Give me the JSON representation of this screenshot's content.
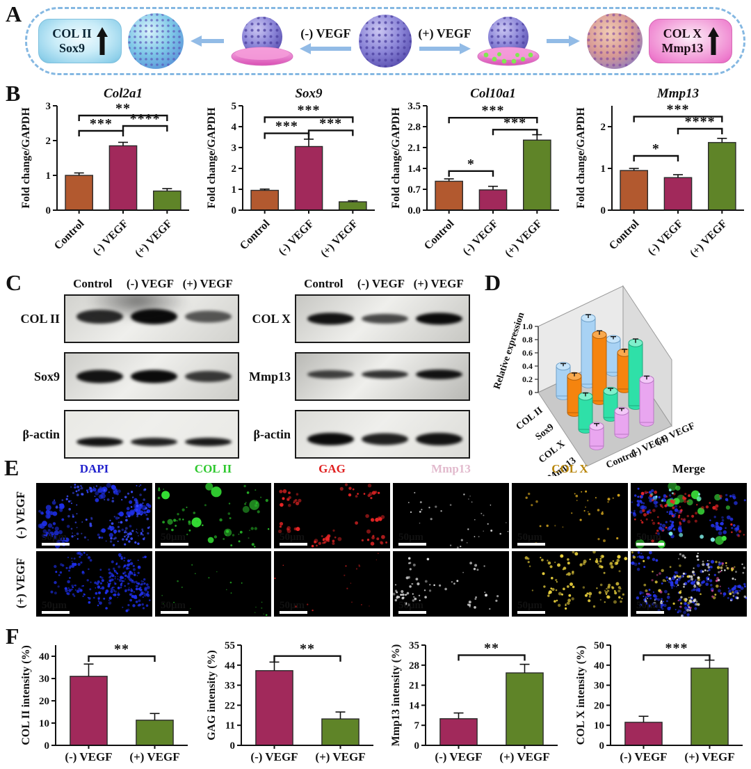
{
  "panel_labels": {
    "a": "A",
    "b": "B",
    "c": "C",
    "d": "D",
    "e": "E",
    "f": "F"
  },
  "panel_a": {
    "left_box": {
      "line1": "COL II",
      "line2": "Sox9"
    },
    "right_box": {
      "line1": "COL X",
      "line2": "Mmp13"
    },
    "minus_label": "(-) VEGF",
    "plus_label": "(+) VEGF"
  },
  "colors": {
    "control_bar": "#B2592F",
    "minus_bar": "#A1295B",
    "plus_bar": "#5F8428",
    "dashed_border": "#85B8E2"
  },
  "panel_c": {
    "groups": [
      {
        "headers": [
          "Control",
          "(-) VEGF",
          "(+) VEGF"
        ],
        "rows": [
          {
            "label": "COL II",
            "bands": [
              0.8,
              1,
              0.5
            ],
            "thickness": 22,
            "band_y": 46,
            "bg": "#d2d2ce",
            "smudge": true
          },
          {
            "label": "Sox9",
            "bands": [
              0.95,
              1,
              0.7
            ],
            "thickness": 19,
            "band_y": 50,
            "bg": "#cdcdc9",
            "smudge": false
          },
          {
            "label": "β-actin",
            "bands": [
              0.95,
              0.85,
              0.9
            ],
            "thickness": 13,
            "band_y": 66,
            "bg": "#e9e9e5",
            "smudge": false
          }
        ]
      },
      {
        "headers": [
          "Control",
          "(-) VEGF",
          "(+) VEGF"
        ],
        "rows": [
          {
            "label": "COL X",
            "bands": [
              0.95,
              0.6,
              1
            ],
            "thickness": 17,
            "band_y": 50,
            "bg": "#c7c7c3",
            "smudge": false
          },
          {
            "label": "Mmp13",
            "bands": [
              0.65,
              0.75,
              0.95
            ],
            "thickness": 14,
            "band_y": 46,
            "bg": "#b9b9b5",
            "smudge": false
          },
          {
            "label": "β-actin",
            "bands": [
              1,
              0.85,
              0.95
            ],
            "thickness": 18,
            "band_y": 60,
            "bg": "#dcdcd8",
            "smudge": false
          }
        ]
      }
    ]
  },
  "panel_e": {
    "headers": [
      {
        "label": "DAPI",
        "color": "#2020CC"
      },
      {
        "label": "COL II",
        "color": "#2EC82E"
      },
      {
        "label": "GAG",
        "color": "#E02020"
      },
      {
        "label": "Mmp13",
        "color": "#E2BACD"
      },
      {
        "label": "COL X",
        "color": "#B8860B"
      },
      {
        "label": "Merge",
        "color": "#111111"
      }
    ],
    "row_labels": [
      "(-) VEGF",
      "(+) VEGF"
    ],
    "scale_label": "50μm",
    "cells": [
      [
        [
          {
            "c": "#1E2FE8",
            "count": 120,
            "rmin": 1.5,
            "rmax": 4,
            "clusters": 12,
            "spread": 22
          },
          {
            "c": "#3A4CFF",
            "count": 150,
            "rmin": 0.8,
            "rmax": 2,
            "clusters": 14,
            "spread": 26
          }
        ],
        [
          {
            "c": "#35E035",
            "count": 9,
            "rmin": 4,
            "rmax": 8,
            "clusters": 9,
            "spread": 30
          },
          {
            "c": "#2BC72B",
            "count": 60,
            "rmin": 0.8,
            "rmax": 2.2,
            "clusters": 12,
            "spread": 30
          }
        ],
        [
          {
            "c": "#E82525",
            "count": 80,
            "rmin": 1.2,
            "rmax": 3,
            "clusters": 11,
            "spread": 24
          }
        ],
        [
          {
            "c": "#C8C8C8",
            "count": 28,
            "rmin": 0.7,
            "rmax": 1.6,
            "clusters": 9,
            "spread": 28
          }
        ],
        [
          {
            "c": "#D9A91F",
            "count": 34,
            "rmin": 0.9,
            "rmax": 2,
            "clusters": 9,
            "spread": 26
          }
        ],
        [
          {
            "c": "#2433E8",
            "count": 110,
            "rmin": 1.2,
            "rmax": 3,
            "clusters": 12,
            "spread": 24
          },
          {
            "c": "#3BE03B",
            "count": 10,
            "rmin": 3,
            "rmax": 7,
            "clusters": 8,
            "spread": 28
          },
          {
            "c": "#E82525",
            "count": 70,
            "rmin": 1,
            "rmax": 2.6,
            "clusters": 11,
            "spread": 24
          },
          {
            "c": "#7FF0E8",
            "count": 12,
            "rmin": 1.5,
            "rmax": 3.5,
            "clusters": 6,
            "spread": 20
          }
        ]
      ],
      [
        [
          {
            "c": "#1E2FE8",
            "count": 260,
            "rmin": 0.8,
            "rmax": 2.4,
            "clusters": 16,
            "spread": 28
          }
        ],
        [
          {
            "c": "#2BC72B",
            "count": 16,
            "rmin": 0.6,
            "rmax": 1.4,
            "clusters": 7,
            "spread": 30
          }
        ],
        [
          {
            "c": "#D82020",
            "count": 14,
            "rmin": 0.6,
            "rmax": 1.3,
            "clusters": 6,
            "spread": 30
          }
        ],
        [
          {
            "c": "#DCDCDC",
            "count": 70,
            "rmin": 0.9,
            "rmax": 2.2,
            "clusters": 12,
            "spread": 26
          }
        ],
        [
          {
            "c": "#E8CF3C",
            "count": 110,
            "rmin": 1,
            "rmax": 2.6,
            "clusters": 13,
            "spread": 26
          }
        ],
        [
          {
            "c": "#2433E8",
            "count": 170,
            "rmin": 1,
            "rmax": 2.6,
            "clusters": 14,
            "spread": 26
          },
          {
            "c": "#E0E0E0",
            "count": 80,
            "rmin": 0.9,
            "rmax": 2.2,
            "clusters": 12,
            "spread": 26
          },
          {
            "c": "#E8CF3C",
            "count": 45,
            "rmin": 1,
            "rmax": 2.4,
            "clusters": 10,
            "spread": 26
          },
          {
            "c": "#D84A9A",
            "count": 18,
            "rmin": 1,
            "rmax": 2,
            "clusters": 6,
            "spread": 24
          }
        ]
      ]
    ]
  },
  "chart_data": [
    {
      "id": "b1",
      "type": "bar",
      "title": "Col2a1",
      "ylabel": "Fold change/GAPDH",
      "categories": [
        "Control",
        "(-) VEGF",
        "(+) VEGF"
      ],
      "values": [
        1.0,
        1.85,
        0.55
      ],
      "errors": [
        0.07,
        0.1,
        0.07
      ],
      "ylim": [
        0,
        3
      ],
      "yticks": [
        "0",
        "1",
        "2",
        "3"
      ],
      "bar_colors": [
        "#B2592F",
        "#A1295B",
        "#5F8428"
      ],
      "rotate_x": true,
      "significance": [
        {
          "pair": [
            0,
            1
          ],
          "label": "***",
          "y": 2.28
        },
        {
          "pair": [
            1,
            2
          ],
          "label": "****",
          "y": 2.42
        },
        {
          "pair": [
            0,
            2
          ],
          "label": "**",
          "y": 2.72
        }
      ]
    },
    {
      "id": "b2",
      "type": "bar",
      "title": "Sox9",
      "ylabel": "Fold change/GAPDH",
      "categories": [
        "Control",
        "(-) VEGF",
        "(+) VEGF"
      ],
      "values": [
        0.95,
        3.05,
        0.4
      ],
      "errors": [
        0.06,
        0.35,
        0.05
      ],
      "ylim": [
        0,
        5
      ],
      "yticks": [
        "0",
        "1",
        "2",
        "3",
        "4",
        "5"
      ],
      "bar_colors": [
        "#B2592F",
        "#A1295B",
        "#5F8428"
      ],
      "rotate_x": true,
      "significance": [
        {
          "pair": [
            0,
            1
          ],
          "label": "***",
          "y": 3.68
        },
        {
          "pair": [
            1,
            2
          ],
          "label": "***",
          "y": 3.82
        },
        {
          "pair": [
            0,
            2
          ],
          "label": "***",
          "y": 4.45
        }
      ]
    },
    {
      "id": "b3",
      "type": "bar",
      "title": "Col10a1",
      "ylabel": "Fold change/GAPDH",
      "categories": [
        "Control",
        "(-) VEGF",
        "(+) VEGF"
      ],
      "values": [
        0.97,
        0.68,
        2.35
      ],
      "errors": [
        0.08,
        0.12,
        0.18
      ],
      "ylim": [
        0,
        3.5
      ],
      "yticks": [
        "0.0",
        "0.7",
        "1.4",
        "2.1",
        "2.8",
        "3.5"
      ],
      "bar_colors": [
        "#B2592F",
        "#A1295B",
        "#5F8428"
      ],
      "rotate_x": true,
      "significance": [
        {
          "pair": [
            0,
            1
          ],
          "label": "*",
          "y": 1.31
        },
        {
          "pair": [
            1,
            2
          ],
          "label": "***",
          "y": 2.7
        },
        {
          "pair": [
            0,
            2
          ],
          "label": "***",
          "y": 3.1
        }
      ]
    },
    {
      "id": "b4",
      "type": "bar",
      "title": "Mmp13",
      "ylabel": "Fold change/GAPDH",
      "categories": [
        "Control",
        "(-) VEGF",
        "(+) VEGF"
      ],
      "values": [
        0.95,
        0.78,
        1.62
      ],
      "errors": [
        0.05,
        0.07,
        0.1
      ],
      "ylim": [
        0,
        2.5
      ],
      "yticks": [
        "0",
        "1",
        "2"
      ],
      "bar_colors": [
        "#B2592F",
        "#A1295B",
        "#5F8428"
      ],
      "rotate_x": true,
      "significance": [
        {
          "pair": [
            0,
            1
          ],
          "label": "*",
          "y": 1.3
        },
        {
          "pair": [
            1,
            2
          ],
          "label": "****",
          "y": 1.95
        },
        {
          "pair": [
            0,
            2
          ],
          "label": "***",
          "y": 2.24
        }
      ]
    },
    {
      "id": "d",
      "type": "bar3d",
      "zlabel": "Relative expression",
      "zlim": [
        0,
        1
      ],
      "zticks": [
        "0",
        "0.2",
        "0.4",
        "0.6",
        "0.8",
        "1.0"
      ],
      "groups": [
        "Control",
        "(-) VEGF",
        "(+) VEGF"
      ],
      "proteins": [
        "COL II",
        "Sox9",
        "COL X",
        "Mmp13"
      ],
      "series": [
        {
          "name": "COL II",
          "fill": "#A8D2F4",
          "stroke": "#6FA0C8",
          "top": "#C6E4FA",
          "values": [
            0.45,
            1.0,
            0.5
          ],
          "errors": [
            0.04,
            0.05,
            0.04
          ]
        },
        {
          "name": "Sox9",
          "fill": "#F5840E",
          "stroke": "#B5600A",
          "top": "#F9A94E",
          "values": [
            0.55,
            1.0,
            0.55
          ],
          "errors": [
            0.05,
            0.06,
            0.05
          ]
        },
        {
          "name": "COL X",
          "fill": "#2FE0A8",
          "stroke": "#1FA87D",
          "top": "#7FF0CC",
          "values": [
            0.5,
            0.4,
            0.95
          ],
          "errors": [
            0.05,
            0.04,
            0.06
          ]
        },
        {
          "name": "Mmp13",
          "fill": "#E9A6F0",
          "stroke": "#B878C2",
          "top": "#F3C8F8",
          "values": [
            0.3,
            0.35,
            0.65
          ],
          "errors": [
            0.04,
            0.04,
            0.05
          ]
        }
      ]
    },
    {
      "id": "f1",
      "type": "bar",
      "ylabel": "COL II intensity (%)",
      "categories": [
        "(-) VEGF",
        "(+) VEGF"
      ],
      "values": [
        31,
        11.3
      ],
      "errors": [
        5.5,
        3
      ],
      "ylim": [
        0,
        45
      ],
      "yticks": [
        "0",
        "10",
        "20",
        "30",
        "40"
      ],
      "bar_colors": [
        "#A1295B",
        "#5F8428"
      ],
      "rotate_x": false,
      "significance": [
        {
          "pair": [
            0,
            1
          ],
          "label": "**",
          "y": 40
        }
      ]
    },
    {
      "id": "f2",
      "type": "bar",
      "ylabel": "GAG intensity (%)",
      "categories": [
        "(-) VEGF",
        "(+) VEGF"
      ],
      "values": [
        41,
        14.5
      ],
      "errors": [
        4.7,
        3.8
      ],
      "ylim": [
        0,
        55
      ],
      "yticks": [
        "0",
        "11",
        "22",
        "33",
        "44",
        "55"
      ],
      "bar_colors": [
        "#A1295B",
        "#5F8428"
      ],
      "rotate_x": false,
      "significance": [
        {
          "pair": [
            0,
            1
          ],
          "label": "**",
          "y": 49
        }
      ]
    },
    {
      "id": "f3",
      "type": "bar",
      "ylabel": "Mmp13 intensity (%)",
      "categories": [
        "(-) VEGF",
        "(+) VEGF"
      ],
      "values": [
        9.3,
        25.3
      ],
      "errors": [
        2,
        3
      ],
      "ylim": [
        0,
        35
      ],
      "yticks": [
        "0",
        "7",
        "14",
        "21",
        "28",
        "35"
      ],
      "bar_colors": [
        "#A1295B",
        "#5F8428"
      ],
      "rotate_x": false,
      "significance": [
        {
          "pair": [
            0,
            1
          ],
          "label": "**",
          "y": 31.5
        }
      ]
    },
    {
      "id": "f4",
      "type": "bar",
      "ylabel": "COL X intensity (%)",
      "categories": [
        "(-) VEGF",
        "(+) VEGF"
      ],
      "values": [
        11.5,
        38.5
      ],
      "errors": [
        3,
        4
      ],
      "ylim": [
        0,
        50
      ],
      "yticks": [
        "0",
        "10",
        "20",
        "30",
        "40",
        "50"
      ],
      "bar_colors": [
        "#A1295B",
        "#5F8428"
      ],
      "rotate_x": false,
      "significance": [
        {
          "pair": [
            0,
            1
          ],
          "label": "***",
          "y": 45
        }
      ]
    }
  ]
}
